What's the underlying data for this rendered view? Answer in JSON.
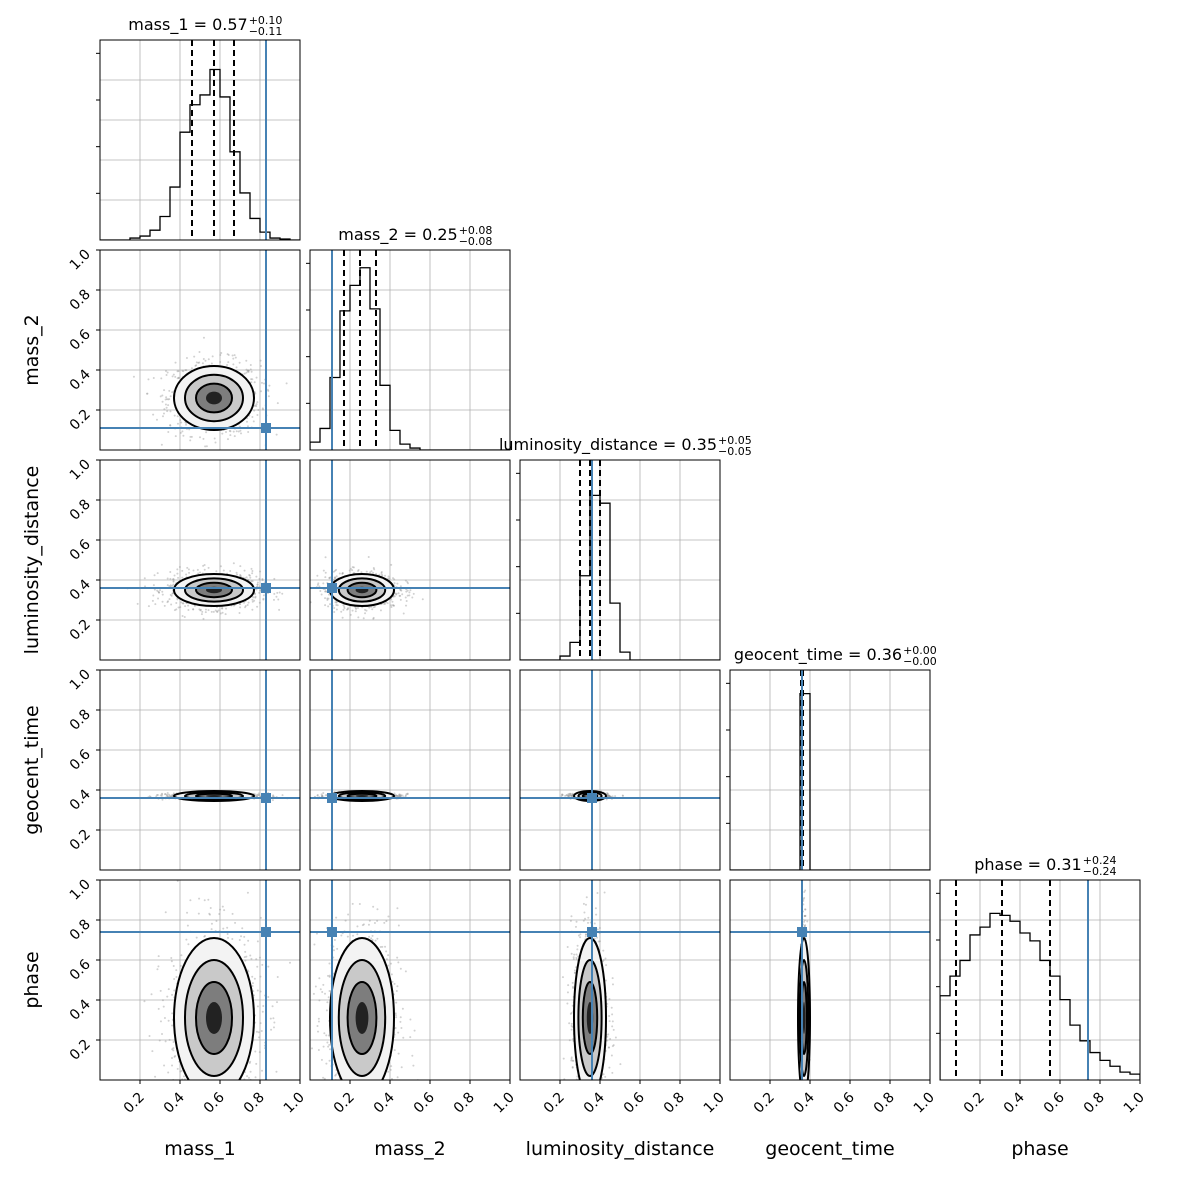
{
  "chart_data": {
    "type": "corner",
    "parameters": [
      "mass_1",
      "mass_2",
      "luminosity_distance",
      "geocent_time",
      "phase"
    ],
    "axis_labels": [
      "mass_1",
      "mass_2",
      "luminosity_distance",
      "geocent_time",
      "phase"
    ],
    "axis_range": [
      0,
      1
    ],
    "x_ticks": [
      "0.2",
      "0.4",
      "0.6",
      "0.8",
      "1.0"
    ],
    "y_ticks": [
      "0.2",
      "0.4",
      "0.6",
      "0.8",
      "1.0"
    ],
    "grid": true,
    "truth_color": "#4682b4",
    "hist_color": "#000000",
    "injection_values": [
      0.83,
      0.11,
      0.36,
      0.36,
      0.74
    ],
    "titles": [
      {
        "text": "mass_1 = 0.57",
        "plus": "+0.10",
        "minus": "−0.11",
        "median": 0.57,
        "lower": 0.46,
        "upper": 0.67
      },
      {
        "text": "mass_2 = 0.25",
        "plus": "+0.08",
        "minus": "−0.08",
        "median": 0.25,
        "lower": 0.17,
        "upper": 0.33
      },
      {
        "text": "luminosity_distance = 0.35",
        "plus": "+0.05",
        "minus": "−0.05",
        "median": 0.35,
        "lower": 0.3,
        "upper": 0.4
      },
      {
        "text": "geocent_time = 0.36",
        "plus": "+0.00",
        "minus": "−0.00",
        "median": 0.36,
        "lower": 0.355,
        "upper": 0.365
      },
      {
        "text": "phase = 0.31",
        "plus": "+0.24",
        "minus": "−0.24",
        "median": 0.31,
        "lower": 0.08,
        "upper": 0.55
      }
    ],
    "histograms": [
      {
        "bin_edges": [
          0.0,
          0.05,
          0.1,
          0.15,
          0.2,
          0.25,
          0.3,
          0.35,
          0.4,
          0.45,
          0.5,
          0.55,
          0.6,
          0.65,
          0.7,
          0.75,
          0.8,
          0.85,
          0.9,
          0.95,
          1.0
        ],
        "counts": [
          0,
          0,
          0,
          0.01,
          0.02,
          0.05,
          0.12,
          0.27,
          0.55,
          0.69,
          0.74,
          0.87,
          0.73,
          0.45,
          0.24,
          0.11,
          0.04,
          0.01,
          0.005,
          0,
          0
        ]
      },
      {
        "bin_edges": [
          0.0,
          0.05,
          0.1,
          0.15,
          0.2,
          0.25,
          0.3,
          0.35,
          0.4,
          0.45,
          0.5,
          0.55,
          0.6,
          0.65,
          0.7,
          0.75,
          0.8,
          0.85,
          0.9,
          0.95,
          1.0
        ],
        "counts": [
          0.04,
          0.11,
          0.37,
          0.71,
          0.84,
          0.93,
          0.72,
          0.33,
          0.1,
          0.03,
          0.01,
          0,
          0,
          0,
          0,
          0,
          0,
          0,
          0,
          0
        ]
      },
      {
        "bin_edges": [
          0.0,
          0.05,
          0.1,
          0.15,
          0.2,
          0.25,
          0.3,
          0.35,
          0.4,
          0.45,
          0.5,
          0.55,
          0.6,
          0.65,
          0.7,
          0.75,
          0.8,
          0.85,
          0.9,
          0.95,
          1.0
        ],
        "counts": [
          0,
          0,
          0,
          0,
          0.02,
          0.09,
          0.43,
          0.84,
          0.8,
          0.29,
          0.04,
          0,
          0,
          0,
          0,
          0,
          0,
          0,
          0,
          0
        ]
      },
      {
        "bin_edges": [
          0.0,
          0.05,
          0.1,
          0.15,
          0.2,
          0.25,
          0.3,
          0.35,
          0.4,
          0.45,
          0.5,
          0.55,
          0.6,
          0.65,
          0.7,
          0.75,
          0.8,
          0.85,
          0.9,
          0.95,
          1.0
        ],
        "counts": [
          0,
          0,
          0,
          0,
          0,
          0,
          0,
          0.9,
          0,
          0,
          0,
          0,
          0,
          0,
          0,
          0,
          0,
          0,
          0,
          0
        ]
      },
      {
        "bin_edges": [
          0.0,
          0.05,
          0.1,
          0.15,
          0.2,
          0.25,
          0.3,
          0.35,
          0.4,
          0.45,
          0.5,
          0.55,
          0.6,
          0.65,
          0.7,
          0.75,
          0.8,
          0.85,
          0.9,
          0.95,
          1.0
        ],
        "counts": [
          0.43,
          0.53,
          0.61,
          0.74,
          0.78,
          0.85,
          0.84,
          0.81,
          0.75,
          0.71,
          0.61,
          0.53,
          0.41,
          0.28,
          0.2,
          0.14,
          0.1,
          0.07,
          0.04,
          0.03
        ]
      }
    ],
    "pair_distributions": [
      {
        "x": "mass_1",
        "y": "mass_2",
        "mean_x": 0.57,
        "mean_y": 0.26,
        "sigma_x": 0.1,
        "sigma_y": 0.08
      },
      {
        "x": "mass_1",
        "y": "luminosity_distance",
        "mean_x": 0.57,
        "mean_y": 0.35,
        "sigma_x": 0.1,
        "sigma_y": 0.04
      },
      {
        "x": "mass_2",
        "y": "luminosity_distance",
        "mean_x": 0.26,
        "mean_y": 0.35,
        "sigma_x": 0.08,
        "sigma_y": 0.04
      },
      {
        "x": "mass_1",
        "y": "geocent_time",
        "mean_x": 0.57,
        "mean_y": 0.37,
        "sigma_x": 0.1,
        "sigma_y": 0.006
      },
      {
        "x": "mass_2",
        "y": "geocent_time",
        "mean_x": 0.26,
        "mean_y": 0.37,
        "sigma_x": 0.08,
        "sigma_y": 0.006
      },
      {
        "x": "luminosity_distance",
        "y": "geocent_time",
        "mean_x": 0.35,
        "mean_y": 0.37,
        "sigma_x": 0.04,
        "sigma_y": 0.006
      },
      {
        "x": "mass_1",
        "y": "phase",
        "mean_x": 0.57,
        "mean_y": 0.31,
        "sigma_x": 0.1,
        "sigma_y": 0.2
      },
      {
        "x": "mass_2",
        "y": "phase",
        "mean_x": 0.26,
        "mean_y": 0.31,
        "sigma_x": 0.08,
        "sigma_y": 0.2
      },
      {
        "x": "luminosity_distance",
        "y": "phase",
        "mean_x": 0.35,
        "mean_y": 0.31,
        "sigma_x": 0.04,
        "sigma_y": 0.2
      },
      {
        "x": "geocent_time",
        "y": "phase",
        "mean_x": 0.37,
        "mean_y": 0.31,
        "sigma_x": 0.006,
        "sigma_y": 0.2
      }
    ]
  }
}
